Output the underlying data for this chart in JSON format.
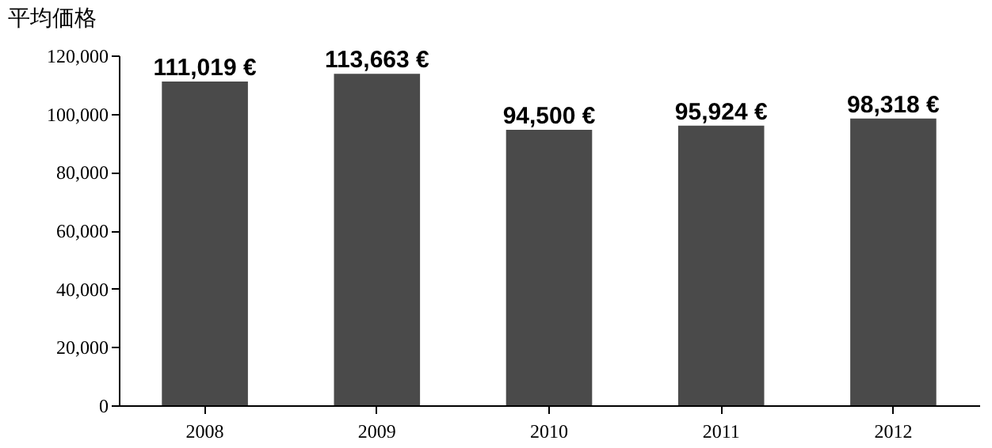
{
  "chart_data": {
    "type": "bar",
    "title": "平均価格",
    "categories": [
      "2008",
      "2009",
      "2010",
      "2011",
      "2012"
    ],
    "values": [
      111019,
      113663,
      94500,
      95924,
      98318
    ],
    "value_labels": [
      "111,019 €",
      "113,663 €",
      "94,500 €",
      "95,924 €",
      "98,318 €"
    ],
    "color": "#4a4a4a",
    "ylim": [
      0,
      120000
    ],
    "yticks": [
      {
        "value": 0,
        "label": "0"
      },
      {
        "value": 20000,
        "label": "20,000"
      },
      {
        "value": 40000,
        "label": "40,000"
      },
      {
        "value": 60000,
        "label": "60,000"
      },
      {
        "value": 80000,
        "label": "80,000"
      },
      {
        "value": 100000,
        "label": "100,000"
      },
      {
        "value": 120000,
        "label": "120,000"
      }
    ],
    "grid": false
  }
}
